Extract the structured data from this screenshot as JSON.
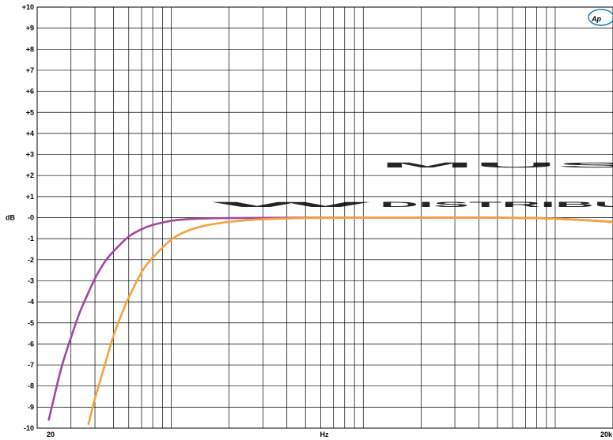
{
  "chart_data": {
    "type": "line",
    "title": "",
    "xlabel": "Hz",
    "ylabel": "dB",
    "xscale": "log",
    "xlim": [
      20,
      20000
    ],
    "ylim": [
      -10,
      10
    ],
    "grid": true,
    "x_tick_labels": [
      {
        "value": 20,
        "label": "20"
      },
      {
        "value": 20000,
        "label": "20k"
      }
    ],
    "y_ticks": [
      {
        "value": 10,
        "label": "+10"
      },
      {
        "value": 9,
        "label": "+9"
      },
      {
        "value": 8,
        "label": "+8"
      },
      {
        "value": 7,
        "label": "+7"
      },
      {
        "value": 6,
        "label": "+6"
      },
      {
        "value": 5,
        "label": "+5"
      },
      {
        "value": 4,
        "label": "+4"
      },
      {
        "value": 3,
        "label": "+3"
      },
      {
        "value": 2,
        "label": "+2"
      },
      {
        "value": 1,
        "label": "+1"
      },
      {
        "value": 0,
        "label": "-0"
      },
      {
        "value": -1,
        "label": "-1"
      },
      {
        "value": -2,
        "label": "-2"
      },
      {
        "value": -3,
        "label": "-3"
      },
      {
        "value": -4,
        "label": "-4"
      },
      {
        "value": -5,
        "label": "-5"
      },
      {
        "value": -6,
        "label": "-6"
      },
      {
        "value": -7,
        "label": "-7"
      },
      {
        "value": -8,
        "label": "-8"
      },
      {
        "value": -9,
        "label": "-9"
      },
      {
        "value": -10,
        "label": "-10"
      }
    ],
    "series": [
      {
        "color": "#a1479e",
        "x": [
          23,
          25,
          27,
          30,
          33,
          36,
          40,
          45,
          50,
          60,
          70,
          80,
          100,
          120,
          150,
          200,
          300,
          500,
          1000,
          2000,
          5000,
          10000,
          20000
        ],
        "y": [
          -9.6,
          -8.2,
          -7.0,
          -5.7,
          -4.6,
          -3.8,
          -2.9,
          -2.1,
          -1.6,
          -0.9,
          -0.55,
          -0.35,
          -0.15,
          -0.08,
          -0.04,
          -0.02,
          -0.01,
          0.0,
          0.0,
          0.0,
          0.0,
          -0.05,
          -0.2
        ]
      },
      {
        "color": "#f7a13a",
        "x": [
          37,
          40,
          45,
          50,
          55,
          60,
          70,
          80,
          100,
          120,
          150,
          200,
          250,
          300,
          400,
          500,
          700,
          1000,
          2000,
          5000,
          10000,
          20000
        ],
        "y": [
          -9.8,
          -8.6,
          -7.0,
          -5.6,
          -4.6,
          -3.8,
          -2.6,
          -1.9,
          -1.05,
          -0.65,
          -0.38,
          -0.2,
          -0.12,
          -0.08,
          -0.04,
          -0.02,
          -0.01,
          0.0,
          0.0,
          0.0,
          -0.05,
          -0.2
        ]
      }
    ]
  },
  "watermark": {
    "logo_letter": "W",
    "brand_line1": "MUS",
    "brand_line2": "DISTRIBU"
  },
  "ap_logo": {
    "text": "Ap"
  }
}
